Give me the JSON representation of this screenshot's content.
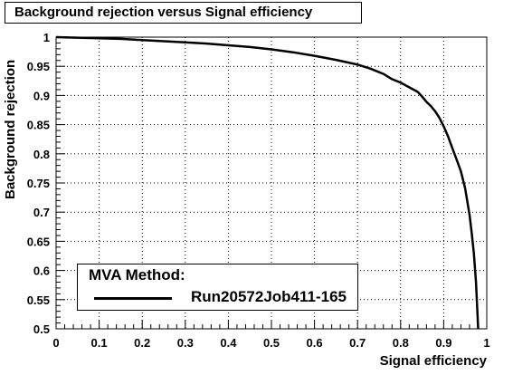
{
  "chart_data": {
    "type": "line",
    "title": "Background rejection versus Signal efficiency",
    "xlabel": "Signal efficiency",
    "ylabel": "Background rejection",
    "xlim": [
      0,
      1
    ],
    "ylim": [
      0.5,
      1
    ],
    "xticks": [
      "0",
      "0.1",
      "0.2",
      "0.3",
      "0.4",
      "0.5",
      "0.6",
      "0.7",
      "0.8",
      "0.9",
      "1"
    ],
    "yticks": [
      "0.5",
      "0.55",
      "0.6",
      "0.65",
      "0.7",
      "0.75",
      "0.8",
      "0.85",
      "0.9",
      "0.95",
      "1"
    ],
    "grid": true,
    "legend": {
      "title": "MVA Method:",
      "position": "bottom-left"
    },
    "series": [
      {
        "name": "Run20572Job411-165",
        "color": "#000000",
        "x": [
          0.0,
          0.05,
          0.1,
          0.15,
          0.2,
          0.25,
          0.3,
          0.35,
          0.4,
          0.45,
          0.5,
          0.55,
          0.6,
          0.65,
          0.7,
          0.73,
          0.76,
          0.78,
          0.8,
          0.82,
          0.84,
          0.85,
          0.86,
          0.87,
          0.88,
          0.89,
          0.9,
          0.91,
          0.92,
          0.93,
          0.94,
          0.95,
          0.96,
          0.965,
          0.97,
          0.975,
          0.98
        ],
        "y": [
          1.0,
          0.999,
          0.998,
          0.997,
          0.995,
          0.993,
          0.991,
          0.989,
          0.986,
          0.983,
          0.979,
          0.974,
          0.968,
          0.961,
          0.953,
          0.946,
          0.937,
          0.928,
          0.922,
          0.914,
          0.906,
          0.898,
          0.889,
          0.882,
          0.873,
          0.862,
          0.847,
          0.83,
          0.81,
          0.79,
          0.77,
          0.74,
          0.695,
          0.665,
          0.63,
          0.58,
          0.5
        ]
      }
    ]
  }
}
